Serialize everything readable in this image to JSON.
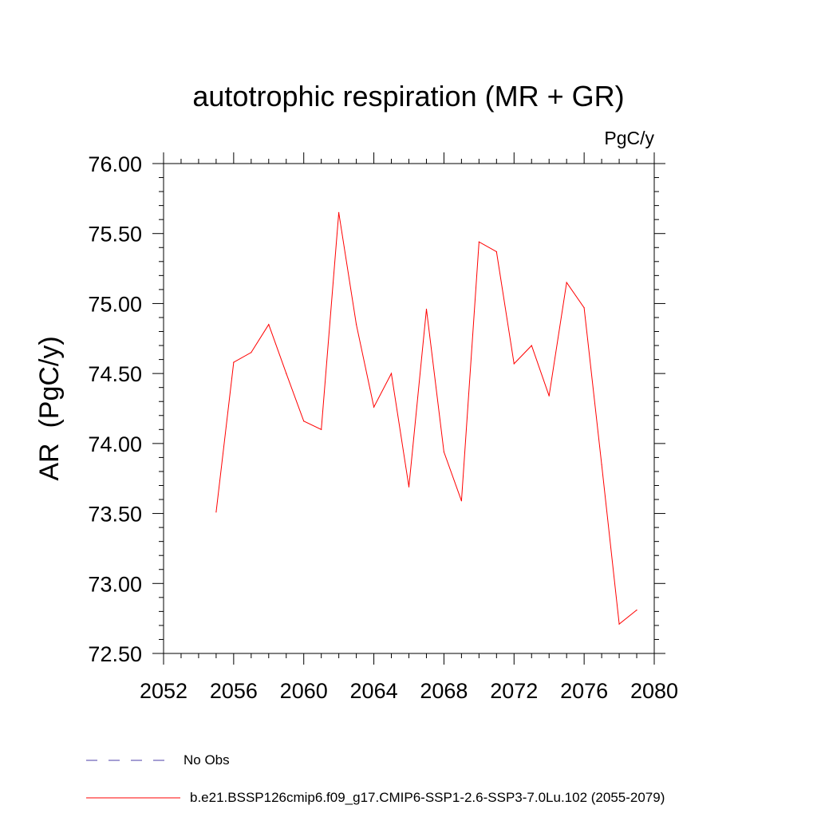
{
  "chart_data": {
    "type": "line",
    "title": "autotrophic respiration (MR + GR)",
    "units_label": "PgC/y",
    "ylabel": "AR  (PgC/y)",
    "xlabel": "",
    "xlim": [
      2052,
      2080
    ],
    "ylim": [
      72.5,
      76.0
    ],
    "x_ticks": [
      2052,
      2056,
      2060,
      2064,
      2068,
      2072,
      2076,
      2080
    ],
    "y_ticks": [
      72.5,
      73.0,
      73.5,
      74.0,
      74.5,
      75.0,
      75.5,
      76.0
    ],
    "x_tick_labels": [
      "2052",
      "2056",
      "2060",
      "2064",
      "2068",
      "2072",
      "2076",
      "2080"
    ],
    "y_tick_labels": [
      "72.50",
      "73.00",
      "73.50",
      "74.00",
      "74.50",
      "75.00",
      "75.50",
      "76.00"
    ],
    "grid": false,
    "legend_position": "bottom-left",
    "series": [
      {
        "name": "b.e21.BSSP126cmip6.f09_g17.CMIP6-SSP1-2.6-SSP3-7.0Lu.102 (2055-2079)",
        "color": "#ff0000",
        "line_style": "solid",
        "x": [
          2055,
          2056,
          2057,
          2058,
          2059,
          2060,
          2061,
          2062,
          2063,
          2064,
          2065,
          2066,
          2067,
          2068,
          2069,
          2070,
          2071,
          2072,
          2073,
          2074,
          2075,
          2076,
          2077,
          2078,
          2079
        ],
        "y": [
          73.51,
          74.58,
          74.65,
          74.85,
          74.5,
          74.16,
          74.1,
          75.65,
          74.85,
          74.26,
          74.5,
          73.69,
          74.96,
          73.94,
          73.59,
          75.44,
          75.37,
          74.57,
          74.7,
          74.34,
          75.15,
          74.97,
          73.85,
          72.71,
          72.81
        ]
      }
    ],
    "legend": [
      {
        "label": "No Obs",
        "color": "#4b3ca8",
        "line_style": "dashed"
      },
      {
        "label": "b.e21.BSSP126cmip6.f09_g17.CMIP6-SSP1-2.6-SSP3-7.0Lu.102 (2055-2079)",
        "color": "#ff0000",
        "line_style": "solid"
      }
    ]
  }
}
